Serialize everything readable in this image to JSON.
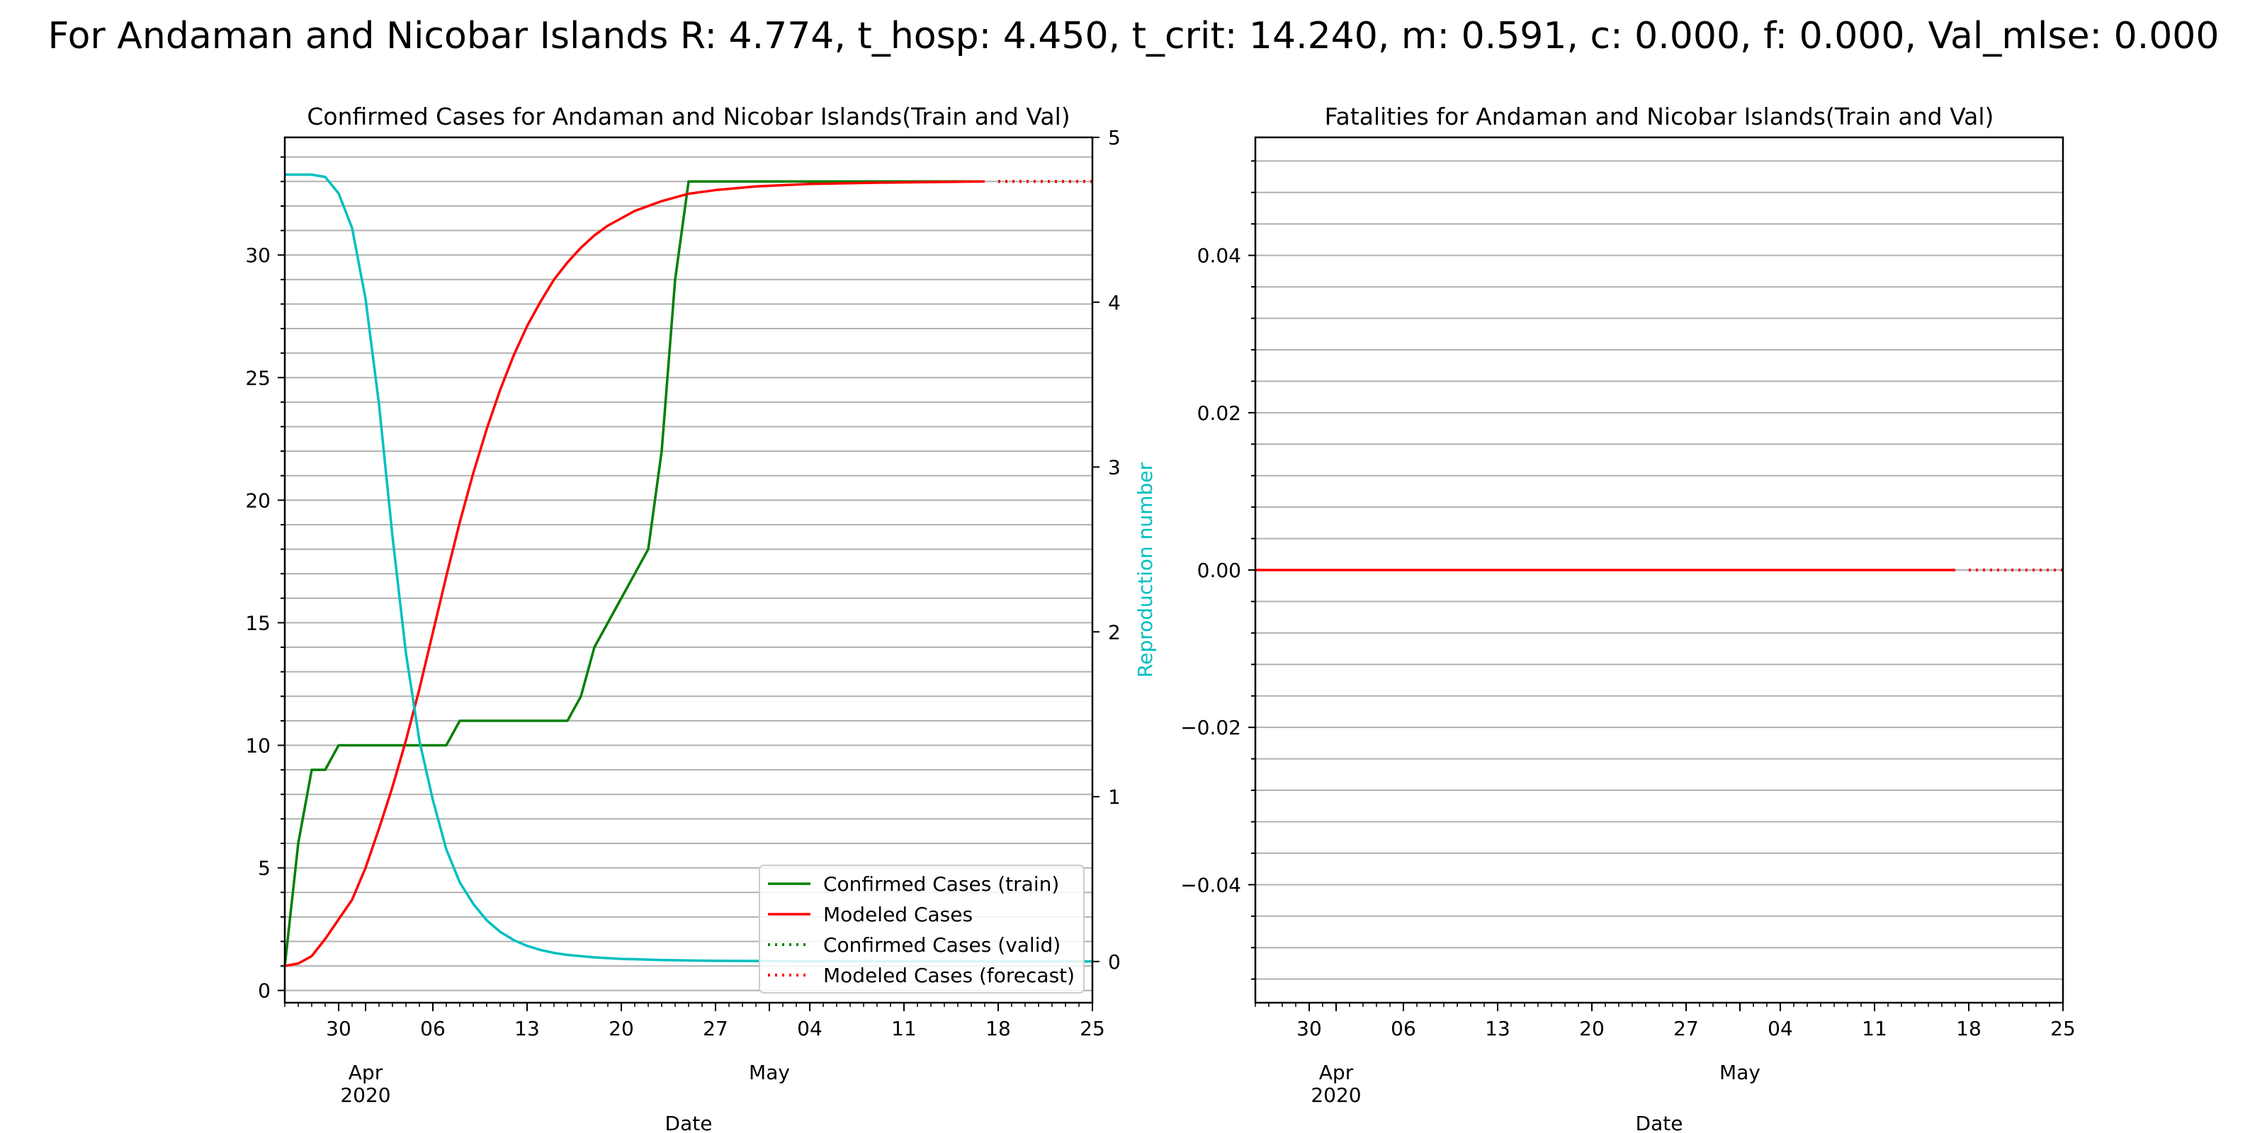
{
  "suptitle": "For Andaman and Nicobar Islands R: 4.774, t_hosp: 4.450, t_crit: 14.240, m: 0.591, c: 0.000, f: 0.000, Val_mlse: 0.000",
  "colors": {
    "confirmed": "#008000",
    "modeled": "#ff0000",
    "reproduction": "#00bfbf",
    "grid": "#b0b0b0"
  },
  "chart_data": [
    {
      "type": "line",
      "title": "Confirmed Cases for Andaman and Nicobar Islands(Train and Val)",
      "xlabel": "Date",
      "ylabel": "",
      "y2label": "Reproduction number",
      "xlim": [
        "2020-03-26",
        "2020-05-25"
      ],
      "ylim": [
        -0.5,
        34.8
      ],
      "y2lim": [
        -0.25,
        5.0
      ],
      "grid": "horizontal, major and minor",
      "legend": "lower right",
      "x_ticks": [
        {
          "date": "2020-03-30",
          "label": "30"
        },
        {
          "date": "2020-04-06",
          "label": "06"
        },
        {
          "date": "2020-04-13",
          "label": "13"
        },
        {
          "date": "2020-04-20",
          "label": "20"
        },
        {
          "date": "2020-04-27",
          "label": "27"
        },
        {
          "date": "2020-05-04",
          "label": "04"
        },
        {
          "date": "2020-05-11",
          "label": "11"
        },
        {
          "date": "2020-05-18",
          "label": "18"
        },
        {
          "date": "2020-05-25",
          "label": "25"
        }
      ],
      "x_month_labels": [
        {
          "date": "2020-04-01",
          "label": "Apr",
          "year": "2020"
        },
        {
          "date": "2020-05-01",
          "label": "May",
          "year": ""
        }
      ],
      "y_ticks": [
        0,
        5,
        10,
        15,
        20,
        25,
        30
      ],
      "y2_ticks": [
        0,
        1,
        2,
        3,
        4,
        5
      ],
      "series": [
        {
          "name": "Confirmed Cases (train)",
          "axis": "left",
          "style": "solid",
          "color": "#008000",
          "points": [
            [
              "2020-03-26",
              1
            ],
            [
              "2020-03-27",
              6
            ],
            [
              "2020-03-28",
              9
            ],
            [
              "2020-03-29",
              9
            ],
            [
              "2020-03-30",
              10
            ],
            [
              "2020-04-06",
              10
            ],
            [
              "2020-04-07",
              10
            ],
            [
              "2020-04-08",
              11
            ],
            [
              "2020-04-16",
              11
            ],
            [
              "2020-04-17",
              12
            ],
            [
              "2020-04-18",
              14
            ],
            [
              "2020-04-22",
              18
            ],
            [
              "2020-04-23",
              22
            ],
            [
              "2020-04-24",
              29
            ],
            [
              "2020-04-25",
              33
            ],
            [
              "2020-05-17",
              33
            ]
          ]
        },
        {
          "name": "Modeled Cases",
          "axis": "left",
          "style": "solid",
          "color": "#ff0000",
          "points": [
            [
              "2020-03-26",
              1.0
            ],
            [
              "2020-03-27",
              1.1
            ],
            [
              "2020-03-28",
              1.4
            ],
            [
              "2020-03-29",
              2.1
            ],
            [
              "2020-03-30",
              2.9
            ],
            [
              "2020-03-31",
              3.7
            ],
            [
              "2020-04-01",
              5.0
            ],
            [
              "2020-04-02",
              6.6
            ],
            [
              "2020-04-03",
              8.3
            ],
            [
              "2020-04-04",
              10.2
            ],
            [
              "2020-04-05",
              12.3
            ],
            [
              "2020-04-06",
              14.6
            ],
            [
              "2020-04-07",
              16.9
            ],
            [
              "2020-04-08",
              19.1
            ],
            [
              "2020-04-09",
              21.1
            ],
            [
              "2020-04-10",
              22.9
            ],
            [
              "2020-04-11",
              24.5
            ],
            [
              "2020-04-12",
              25.9
            ],
            [
              "2020-04-13",
              27.1
            ],
            [
              "2020-04-14",
              28.1
            ],
            [
              "2020-04-15",
              29.0
            ],
            [
              "2020-04-16",
              29.7
            ],
            [
              "2020-04-17",
              30.3
            ],
            [
              "2020-04-18",
              30.8
            ],
            [
              "2020-04-19",
              31.2
            ],
            [
              "2020-04-20",
              31.5
            ],
            [
              "2020-04-21",
              31.8
            ],
            [
              "2020-04-22",
              32.0
            ],
            [
              "2020-04-23",
              32.2
            ],
            [
              "2020-04-24",
              32.35
            ],
            [
              "2020-04-25",
              32.5
            ],
            [
              "2020-04-27",
              32.65
            ],
            [
              "2020-04-30",
              32.8
            ],
            [
              "2020-05-04",
              32.9
            ],
            [
              "2020-05-09",
              32.95
            ],
            [
              "2020-05-17",
              33.0
            ]
          ]
        },
        {
          "name": "Confirmed Cases (valid)",
          "axis": "left",
          "style": "dotted",
          "color": "#008000",
          "points": [
            [
              "2020-05-18",
              33
            ],
            [
              "2020-05-25",
              33
            ]
          ]
        },
        {
          "name": "Modeled Cases (forecast)",
          "axis": "left",
          "style": "dotted",
          "color": "#ff0000",
          "points": [
            [
              "2020-05-18",
              33.0
            ],
            [
              "2020-05-25",
              33.0
            ]
          ]
        },
        {
          "name": "",
          "axis": "right",
          "style": "solid",
          "color": "#00bfbf",
          "points": [
            [
              "2020-03-26",
              4.774
            ],
            [
              "2020-03-28",
              4.774
            ],
            [
              "2020-03-29",
              4.76
            ],
            [
              "2020-03-30",
              4.66
            ],
            [
              "2020-03-31",
              4.45
            ],
            [
              "2020-04-01",
              4.02
            ],
            [
              "2020-04-02",
              3.38
            ],
            [
              "2020-04-03",
              2.58
            ],
            [
              "2020-04-04",
              1.87
            ],
            [
              "2020-04-05",
              1.34
            ],
            [
              "2020-04-06",
              0.98
            ],
            [
              "2020-04-07",
              0.68
            ],
            [
              "2020-04-08",
              0.48
            ],
            [
              "2020-04-09",
              0.35
            ],
            [
              "2020-04-10",
              0.25
            ],
            [
              "2020-04-11",
              0.18
            ],
            [
              "2020-04-12",
              0.13
            ],
            [
              "2020-04-13",
              0.095
            ],
            [
              "2020-04-14",
              0.07
            ],
            [
              "2020-04-15",
              0.052
            ],
            [
              "2020-04-16",
              0.04
            ],
            [
              "2020-04-18",
              0.025
            ],
            [
              "2020-04-20",
              0.016
            ],
            [
              "2020-04-23",
              0.009
            ],
            [
              "2020-04-27",
              0.004
            ],
            [
              "2020-05-04",
              0.002
            ],
            [
              "2020-05-25",
              0.0
            ]
          ]
        }
      ]
    },
    {
      "type": "line",
      "title": "Fatalities for Andaman and Nicobar Islands(Train and Val)",
      "xlabel": "Date",
      "ylabel": "",
      "xlim": [
        "2020-03-26",
        "2020-05-25"
      ],
      "ylim": [
        -0.055,
        0.055
      ],
      "grid": "horizontal, major and minor",
      "x_ticks": [
        {
          "date": "2020-03-30",
          "label": "30"
        },
        {
          "date": "2020-04-06",
          "label": "06"
        },
        {
          "date": "2020-04-13",
          "label": "13"
        },
        {
          "date": "2020-04-20",
          "label": "20"
        },
        {
          "date": "2020-04-27",
          "label": "27"
        },
        {
          "date": "2020-05-04",
          "label": "04"
        },
        {
          "date": "2020-05-11",
          "label": "11"
        },
        {
          "date": "2020-05-18",
          "label": "18"
        },
        {
          "date": "2020-05-25",
          "label": "25"
        }
      ],
      "x_month_labels": [
        {
          "date": "2020-04-01",
          "label": "Apr",
          "year": "2020"
        },
        {
          "date": "2020-05-01",
          "label": "May",
          "year": ""
        }
      ],
      "y_ticks": [
        {
          "value": -0.04,
          "label": "−0.04"
        },
        {
          "value": -0.02,
          "label": "−0.02"
        },
        {
          "value": 0.0,
          "label": "0.00"
        },
        {
          "value": 0.02,
          "label": "0.02"
        },
        {
          "value": 0.04,
          "label": "0.04"
        }
      ],
      "series": [
        {
          "name": "",
          "axis": "left",
          "style": "solid",
          "color": "#ff0000",
          "points": [
            [
              "2020-03-26",
              0
            ],
            [
              "2020-05-17",
              0
            ]
          ]
        },
        {
          "name": "",
          "axis": "left",
          "style": "dotted",
          "color": "#ff0000",
          "points": [
            [
              "2020-05-18",
              0
            ],
            [
              "2020-05-25",
              0
            ]
          ]
        }
      ]
    }
  ]
}
